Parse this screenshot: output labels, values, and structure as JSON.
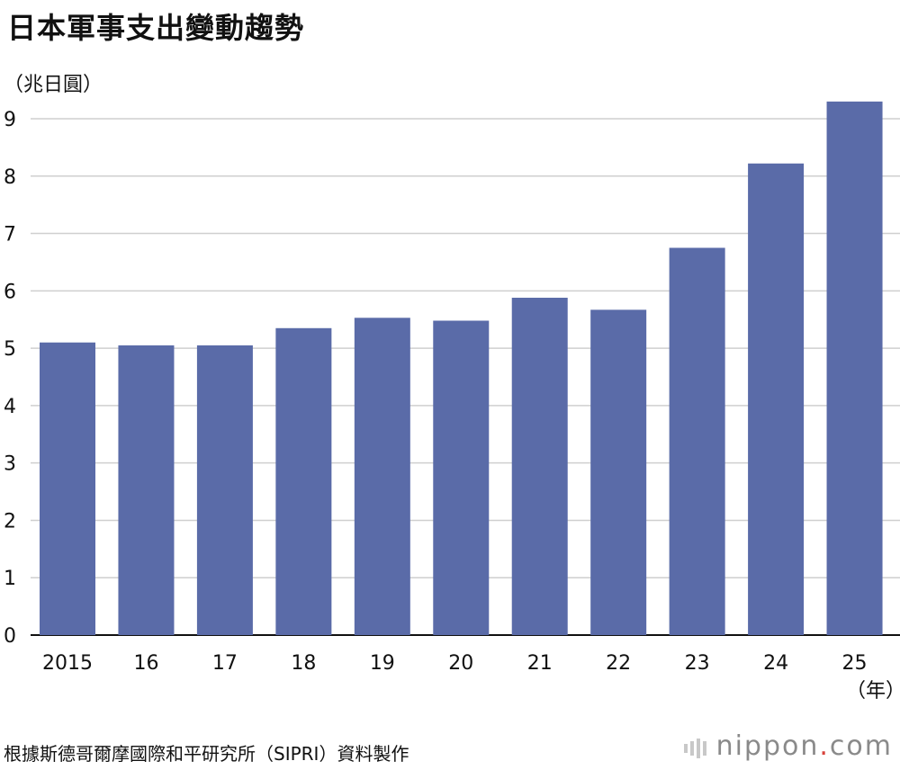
{
  "title": "日本軍事支出變動趨勢",
  "unit_label": "（兆日圓）",
  "x_unit_label": "（年）",
  "source": "根據斯德哥爾摩國際和平研究所（SIPRI）資料製作",
  "brand": {
    "name_part1": "nippon",
    "dot": ".",
    "name_part2": "com"
  },
  "colors": {
    "bar": "#5a6ba8",
    "grid": "#cfcfcf",
    "axis": "#111111",
    "brand_dot": "#d8423b"
  },
  "chart_data": {
    "type": "bar",
    "categories": [
      "2015",
      "16",
      "17",
      "18",
      "19",
      "20",
      "21",
      "22",
      "23",
      "24",
      "25"
    ],
    "values": [
      5.1,
      5.05,
      5.05,
      5.35,
      5.53,
      5.48,
      5.88,
      5.67,
      6.75,
      8.22,
      9.3
    ],
    "ylim": [
      0,
      9
    ],
    "yticks": [
      "0",
      "1",
      "2",
      "3",
      "4",
      "5",
      "6",
      "7",
      "8",
      "9"
    ],
    "ylabel": "（兆日圓）",
    "xlabel": "（年）",
    "grid": true,
    "legend": "none"
  }
}
